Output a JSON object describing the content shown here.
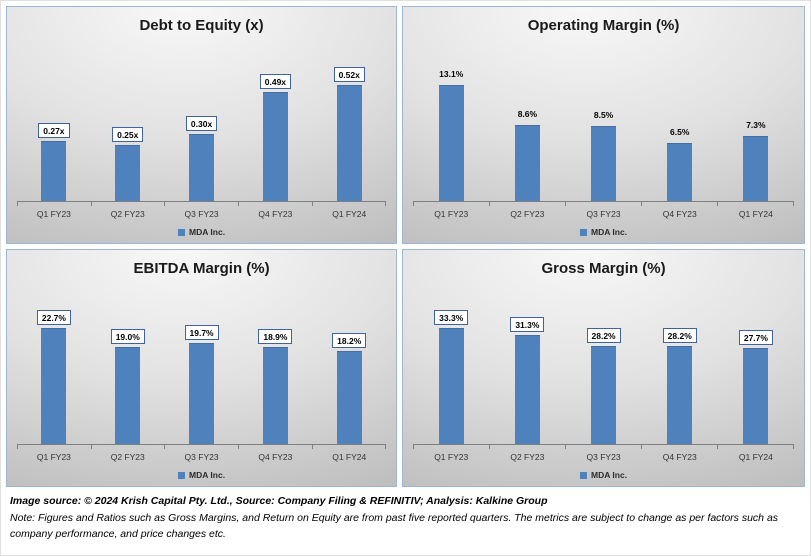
{
  "colors": {
    "bar": "#4f81bd",
    "panel_border": "#9cb7d4",
    "axis": "#7f7f7f"
  },
  "chart_data": [
    {
      "type": "bar",
      "title": "Debt to Equity (x)",
      "categories": [
        "Q1 FY23",
        "Q2 FY23",
        "Q3 FY23",
        "Q4 FY23",
        "Q1 FY24"
      ],
      "values": [
        0.27,
        0.25,
        0.3,
        0.49,
        0.52
      ],
      "labels": [
        "0.27x",
        "0.25x",
        "0.30x",
        "0.49x",
        "0.52x"
      ],
      "legend": "MDA Inc.",
      "legend_position": "bottom",
      "boxed_labels": true,
      "grid": false,
      "xlabel": "",
      "ylabel": "",
      "ylim": [
        0,
        0.6
      ]
    },
    {
      "type": "bar",
      "title": "Operating Margin (%)",
      "categories": [
        "Q1 FY23",
        "Q2 FY23",
        "Q3 FY23",
        "Q4 FY23",
        "Q1 FY24"
      ],
      "values": [
        13.1,
        8.6,
        8.5,
        6.5,
        7.3
      ],
      "labels": [
        "13.1%",
        "8.6%",
        "8.5%",
        "6.5%",
        "7.3%"
      ],
      "legend": "MDA Inc.",
      "legend_position": "bottom",
      "boxed_labels": false,
      "grid": false,
      "xlabel": "",
      "ylabel": "",
      "ylim": [
        0,
        14
      ]
    },
    {
      "type": "bar",
      "title": "EBITDA Margin (%)",
      "categories": [
        "Q1 FY23",
        "Q2 FY23",
        "Q3 FY23",
        "Q4 FY23",
        "Q1 FY24"
      ],
      "values": [
        22.7,
        19.0,
        19.7,
        18.9,
        18.2
      ],
      "labels": [
        "22.7%",
        "19.0%",
        "19.7%",
        "18.9%",
        "18.2%"
      ],
      "legend": "MDA Inc.",
      "legend_position": "bottom",
      "boxed_labels": true,
      "grid": false,
      "xlabel": "",
      "ylabel": "",
      "ylim": [
        0,
        25
      ]
    },
    {
      "type": "bar",
      "title": "Gross Margin (%)",
      "categories": [
        "Q1 FY23",
        "Q2 FY23",
        "Q3 FY23",
        "Q4 FY23",
        "Q1 FY24"
      ],
      "values": [
        33.3,
        31.3,
        28.2,
        28.2,
        27.7
      ],
      "labels": [
        "33.3%",
        "31.3%",
        "28.2%",
        "28.2%",
        "27.7%"
      ],
      "legend": "MDA Inc.",
      "legend_position": "bottom",
      "boxed_labels": true,
      "grid": false,
      "xlabel": "",
      "ylabel": "",
      "ylim": [
        0,
        36
      ]
    }
  ],
  "footer": {
    "source_line": "Image source: © 2024 Krish Capital Pty. Ltd., Source: Company Filing & REFINITIV; Analysis: Kalkine Group",
    "note_line": "Note: Figures and Ratios such as  Gross Margins, and Return on Equity are from past  five reported  quarters. The metrics are subject to change as per factors such as company performance, and price changes etc."
  }
}
